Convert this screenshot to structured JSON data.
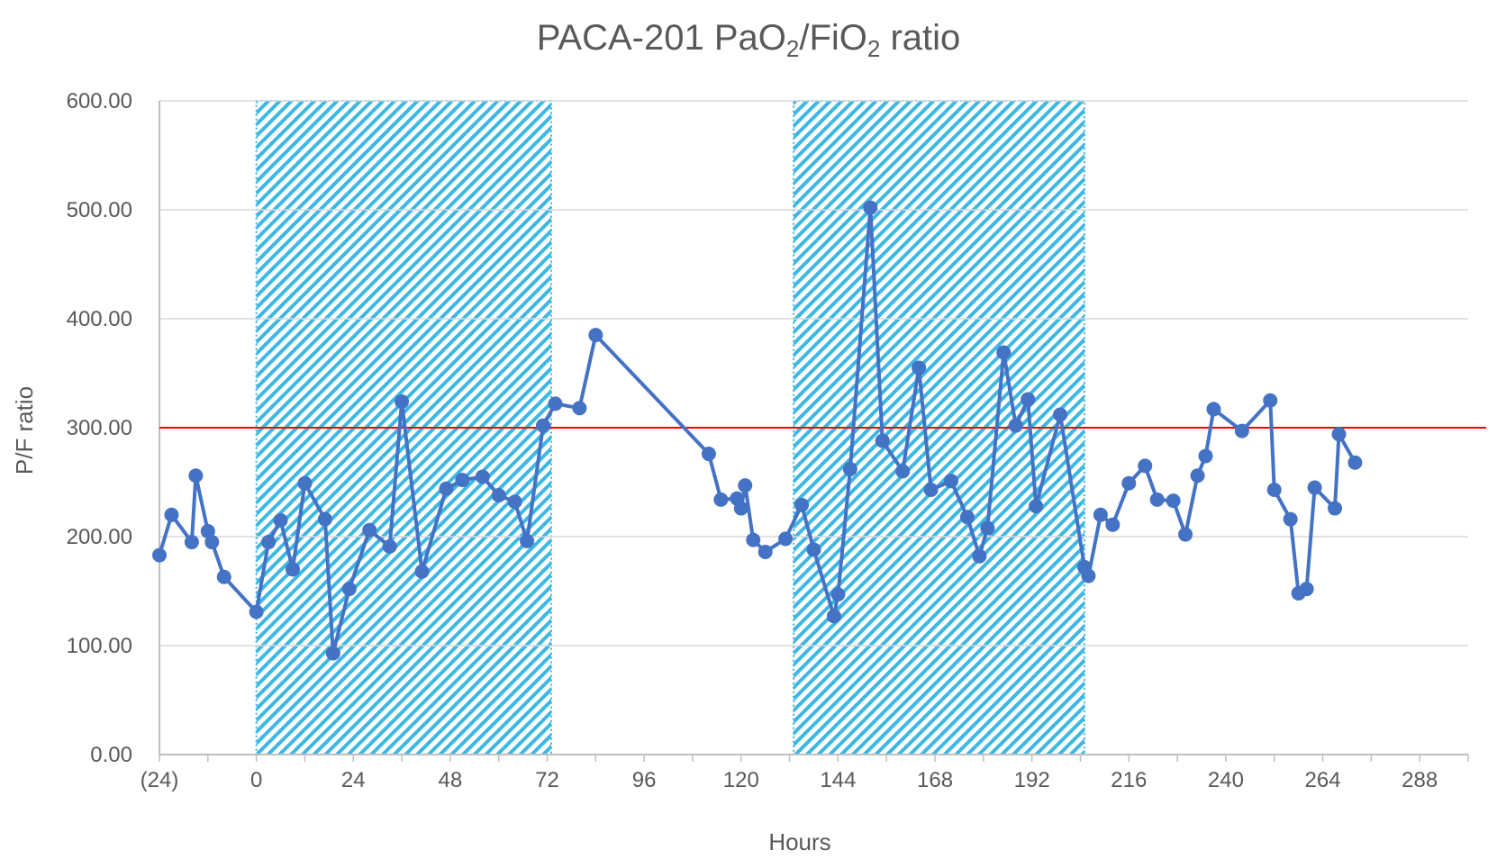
{
  "chart_data": {
    "type": "line",
    "title": "PACA-201 PaO",
    "title_sub1": "2",
    "title_mid": "/FiO",
    "title_sub2": "2",
    "title_end": " ratio",
    "xlabel": "Hours",
    "ylabel": "P/F ratio",
    "xlim": [
      -24,
      300
    ],
    "ylim": [
      0,
      600
    ],
    "x_ticks": [
      {
        "value": -24,
        "label": "(24)"
      },
      {
        "value": 0,
        "label": "0"
      },
      {
        "value": 24,
        "label": "24"
      },
      {
        "value": 48,
        "label": "48"
      },
      {
        "value": 72,
        "label": "72"
      },
      {
        "value": 96,
        "label": "96"
      },
      {
        "value": 120,
        "label": "120"
      },
      {
        "value": 144,
        "label": "144"
      },
      {
        "value": 168,
        "label": "168"
      },
      {
        "value": 192,
        "label": "192"
      },
      {
        "value": 216,
        "label": "216"
      },
      {
        "value": 240,
        "label": "240"
      },
      {
        "value": 264,
        "label": "264"
      },
      {
        "value": 288,
        "label": "288"
      }
    ],
    "y_ticks": [
      {
        "value": 0,
        "label": "0.00"
      },
      {
        "value": 100,
        "label": "100.00"
      },
      {
        "value": 200,
        "label": "200.00"
      },
      {
        "value": 300,
        "label": "300.00"
      },
      {
        "value": 400,
        "label": "400.00"
      },
      {
        "value": 500,
        "label": "500.00"
      },
      {
        "value": 600,
        "label": "600.00"
      }
    ],
    "grid": "horizontal",
    "reference_line": {
      "y": 300,
      "color": "#ff0000"
    },
    "shaded_regions": [
      {
        "x_start": 0,
        "x_end": 73
      },
      {
        "x_start": 133,
        "x_end": 205
      }
    ],
    "series": [
      {
        "color": "#4472c4",
        "x": [
          -24,
          -21,
          -16,
          -15,
          -12,
          -11,
          -8,
          0,
          3,
          6,
          9,
          12,
          17,
          19,
          23,
          28,
          33,
          36,
          41,
          47,
          51,
          56,
          60,
          64,
          67,
          71,
          74,
          80,
          84,
          112,
          115,
          119,
          120,
          121,
          123,
          126,
          131,
          135,
          138,
          143,
          144,
          147,
          152,
          155,
          160,
          164,
          167,
          172,
          176,
          179,
          181,
          185,
          188,
          191,
          193,
          199,
          205,
          206,
          209,
          212,
          216,
          220,
          223,
          227,
          230,
          233,
          235,
          237,
          244,
          251,
          252,
          256,
          258,
          260,
          262,
          267,
          268,
          272
        ],
        "values": [
          183,
          220,
          195,
          256,
          205,
          195,
          163,
          131,
          195,
          215,
          170,
          249,
          216,
          93,
          152,
          206,
          191,
          324,
          168,
          244,
          252,
          255,
          238,
          232,
          196,
          302,
          322,
          318,
          385,
          276,
          234,
          235,
          226,
          247,
          197,
          186,
          198,
          229,
          188,
          127,
          147,
          262,
          502,
          288,
          260,
          355,
          243,
          251,
          218,
          182,
          208,
          369,
          302,
          326,
          228,
          312,
          172,
          164,
          220,
          211,
          249,
          265,
          234,
          233,
          202,
          256,
          274,
          317,
          297,
          325,
          243,
          216,
          148,
          152,
          245,
          226,
          294,
          268
        ]
      }
    ]
  }
}
